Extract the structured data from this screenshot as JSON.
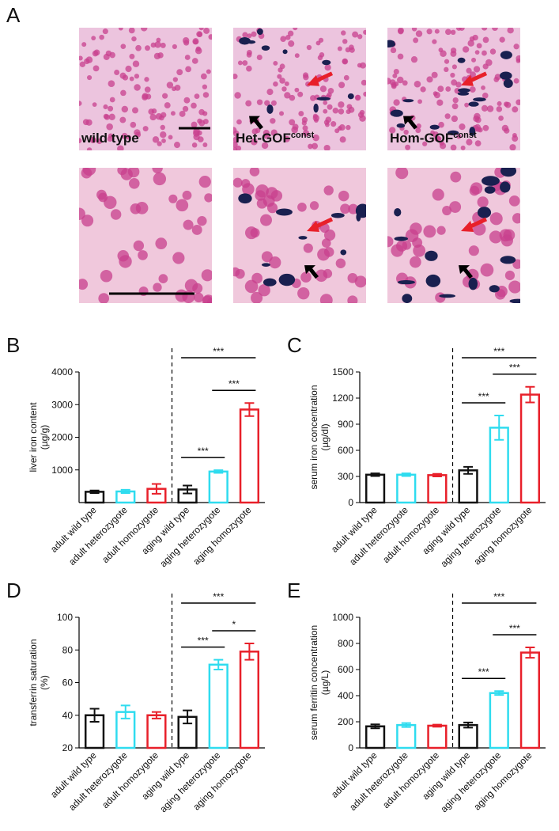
{
  "panel_a": {
    "letter": "A",
    "images": [
      {
        "label": "wild type"
      },
      {
        "label": "Het-GOF",
        "superscript": "const"
      },
      {
        "label": "Hom-GOF",
        "superscript": "const"
      }
    ]
  },
  "chart_data": [
    {
      "type": "bar",
      "letter": "B",
      "ylabel": [
        "liver iron content",
        "(µg/g)"
      ],
      "categories": [
        "adult wild type",
        "adult heterozygote",
        "adult homozygote",
        "aging wild type",
        "aging heterozygote",
        "aging homozygote"
      ],
      "values": [
        330,
        340,
        420,
        400,
        950,
        2850
      ],
      "errors": [
        40,
        50,
        150,
        120,
        40,
        200
      ],
      "colors": [
        "#111111",
        "#2fdcef",
        "#e8202a",
        "#111111",
        "#2fdcef",
        "#e8202a"
      ],
      "ylim": [
        0,
        4000
      ],
      "yticks": [
        1000,
        2000,
        3000,
        4000
      ],
      "comparisons": [
        {
          "between": [
            "aging wild type",
            "aging homozygote"
          ],
          "label": "***"
        },
        {
          "between": [
            "aging heterozygote",
            "aging homozygote"
          ],
          "label": "***"
        },
        {
          "between": [
            "aging wild type",
            "aging heterozygote"
          ],
          "label": "***"
        }
      ]
    },
    {
      "type": "bar",
      "letter": "C",
      "ylabel": [
        "serum iron concentration",
        "(µg/dl)"
      ],
      "categories": [
        "adult wild type",
        "adult heterozygote",
        "adult homozygote",
        "aging wild type",
        "aging heterozygote",
        "aging homozygote"
      ],
      "values": [
        320,
        320,
        315,
        370,
        860,
        1240
      ],
      "errors": [
        15,
        15,
        15,
        40,
        140,
        90
      ],
      "colors": [
        "#111111",
        "#2fdcef",
        "#e8202a",
        "#111111",
        "#2fdcef",
        "#e8202a"
      ],
      "ylim": [
        0,
        1500
      ],
      "yticks": [
        0,
        300,
        600,
        900,
        1200,
        1500
      ],
      "comparisons": [
        {
          "between": [
            "aging wild type",
            "aging homozygote"
          ],
          "label": "***"
        },
        {
          "between": [
            "aging heterozygote",
            "aging homozygote"
          ],
          "label": "***"
        },
        {
          "between": [
            "aging wild type",
            "aging heterozygote"
          ],
          "label": "***"
        }
      ]
    },
    {
      "type": "bar",
      "letter": "D",
      "ylabel": [
        "transferrin saturation",
        "(%)"
      ],
      "categories": [
        "adult wild type",
        "adult heterozygote",
        "adult homozygote",
        "aging wild type",
        "aging heterozygote",
        "aging homozygote"
      ],
      "values": [
        40,
        42,
        40,
        39,
        71,
        79
      ],
      "errors": [
        4,
        4,
        2,
        4,
        3,
        5
      ],
      "colors": [
        "#111111",
        "#2fdcef",
        "#e8202a",
        "#111111",
        "#2fdcef",
        "#e8202a"
      ],
      "ylim": [
        20,
        100
      ],
      "yticks": [
        20,
        40,
        60,
        80,
        100
      ],
      "comparisons": [
        {
          "between": [
            "aging wild type",
            "aging homozygote"
          ],
          "label": "***"
        },
        {
          "between": [
            "aging heterozygote",
            "aging homozygote"
          ],
          "label": "*"
        },
        {
          "between": [
            "aging wild type",
            "aging heterozygote"
          ],
          "label": "***"
        }
      ]
    },
    {
      "type": "bar",
      "letter": "E",
      "ylabel": [
        "serum ferritin concentration",
        "(µg/L)"
      ],
      "categories": [
        "adult wild type",
        "adult heterozygote",
        "adult homozygote",
        "aging wild type",
        "aging heterozygote",
        "aging homozygote"
      ],
      "values": [
        165,
        175,
        170,
        175,
        420,
        730
      ],
      "errors": [
        15,
        15,
        8,
        20,
        15,
        40
      ],
      "colors": [
        "#111111",
        "#2fdcef",
        "#e8202a",
        "#111111",
        "#2fdcef",
        "#e8202a"
      ],
      "ylim": [
        0,
        1000
      ],
      "yticks": [
        0,
        200,
        400,
        600,
        800,
        1000
      ],
      "comparisons": [
        {
          "between": [
            "aging wild type",
            "aging homozygote"
          ],
          "label": "***"
        },
        {
          "between": [
            "aging heterozygote",
            "aging homozygote"
          ],
          "label": "***"
        },
        {
          "between": [
            "aging wild type",
            "aging heterozygote"
          ],
          "label": "***"
        }
      ]
    }
  ]
}
